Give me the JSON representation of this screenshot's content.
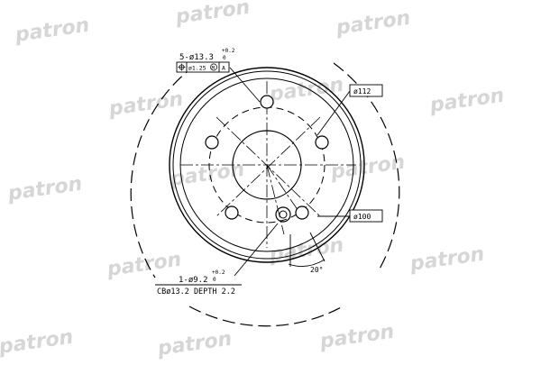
{
  "watermark": {
    "text": "patron",
    "color": "#d6d6d6"
  },
  "drawing": {
    "line_color": "#000000",
    "callouts": {
      "bolt_holes": "5-ø13.3",
      "bolt_holes_tol": "+0.2",
      "bolt_holes_tol_low": "0",
      "position_tol": "ø1.25",
      "position_datum_m": "M",
      "position_datum": "A",
      "outer_dia": "ø112",
      "pcd_dia": "ø100",
      "angle": "20°",
      "center_hole": "1-ø9.2",
      "center_hole_tol": "+0.2",
      "center_hole_tol_low": "0",
      "counterbore": "CBø13.2 DEPTH 2.2"
    }
  }
}
